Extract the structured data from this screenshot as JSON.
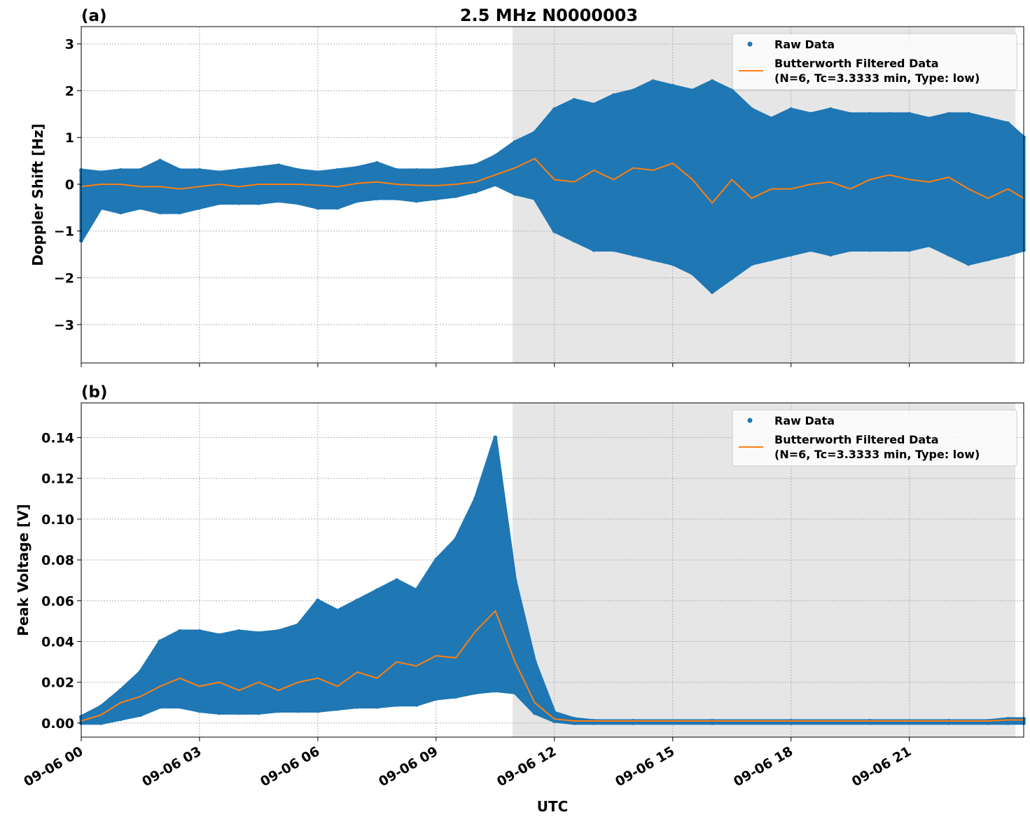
{
  "title": "2.5 MHz N0000003",
  "colors": {
    "raw": "#1f77b4",
    "filtered": "#ff7f0e",
    "shade": "#e6e6e6",
    "grid": "#b0b0b0"
  },
  "legend": {
    "raw": "Raw Data",
    "filtered_line1": "Butterworth Filtered Data",
    "filtered_line2": "(N=6, Tc=3.3333 min, Type: low)",
    "placement": "top-right"
  },
  "xlabel": "UTC",
  "x_ticks": [
    {
      "h": 0,
      "label": "09-06 00"
    },
    {
      "h": 3,
      "label": "09-06 03"
    },
    {
      "h": 6,
      "label": "09-06 06"
    },
    {
      "h": 9,
      "label": "09-06 09"
    },
    {
      "h": 12,
      "label": "09-06 12"
    },
    {
      "h": 15,
      "label": "09-06 15"
    },
    {
      "h": 18,
      "label": "09-06 18"
    },
    {
      "h": 21,
      "label": "09-06 21"
    }
  ],
  "chart_data": [
    {
      "type": "scatter+line",
      "panel_label": "(a)",
      "ylabel": "Doppler Shift [Hz]",
      "xlim_hours": [
        0,
        23.9
      ],
      "ylim": [
        -3.82,
        3.37
      ],
      "grid": true,
      "shaded_interval_hours": [
        10.94,
        23.69
      ],
      "y_ticks": [
        {
          "v": 3,
          "label": "3"
        },
        {
          "v": 2,
          "label": "2"
        },
        {
          "v": 1,
          "label": "1"
        },
        {
          "v": 0,
          "label": "0"
        },
        {
          "v": -1,
          "label": "−1"
        },
        {
          "v": -2,
          "label": "−2"
        },
        {
          "v": -3,
          "label": "−3"
        }
      ],
      "x_hours": [
        0,
        0.5,
        1,
        1.5,
        2,
        2.5,
        3,
        3.5,
        4,
        4.5,
        5,
        5.5,
        6,
        6.5,
        7,
        7.5,
        8,
        8.5,
        9,
        9.5,
        10,
        10.5,
        11,
        11.5,
        12,
        12.5,
        13,
        13.5,
        14,
        14.5,
        15,
        15.5,
        16,
        16.5,
        17,
        17.5,
        18,
        18.5,
        19,
        19.5,
        20,
        20.5,
        21,
        21.5,
        22,
        22.5,
        23,
        23.5,
        23.9
      ],
      "filtered": [
        -0.05,
        0,
        0,
        -0.05,
        -0.05,
        -0.1,
        -0.05,
        0,
        -0.05,
        0,
        0,
        0,
        -0.02,
        -0.05,
        0.02,
        0.05,
        0,
        -0.02,
        -0.03,
        0,
        0.05,
        0.2,
        0.35,
        0.55,
        0.1,
        0.05,
        0.3,
        0.1,
        0.35,
        0.3,
        0.45,
        0.1,
        -0.4,
        0.1,
        -0.3,
        -0.1,
        -0.1,
        0,
        0.05,
        -0.1,
        0.1,
        0.2,
        0.1,
        0.05,
        0.15,
        -0.1,
        -0.3,
        -0.1,
        -0.3
      ],
      "raw_high": [
        0.3,
        0.25,
        0.3,
        0.3,
        0.5,
        0.3,
        0.3,
        0.25,
        0.3,
        0.35,
        0.4,
        0.3,
        0.25,
        0.3,
        0.35,
        0.45,
        0.3,
        0.3,
        0.3,
        0.35,
        0.4,
        0.6,
        0.9,
        1.1,
        1.6,
        1.8,
        1.7,
        1.9,
        2.0,
        2.2,
        2.1,
        2.0,
        2.2,
        2.0,
        1.6,
        1.4,
        1.6,
        1.5,
        1.6,
        1.5,
        1.5,
        1.5,
        1.5,
        1.4,
        1.5,
        1.5,
        1.4,
        1.3,
        1.0
      ],
      "raw_low": [
        -1.2,
        -0.5,
        -0.6,
        -0.5,
        -0.6,
        -0.6,
        -0.5,
        -0.4,
        -0.4,
        -0.4,
        -0.35,
        -0.4,
        -0.5,
        -0.5,
        -0.35,
        -0.3,
        -0.3,
        -0.35,
        -0.3,
        -0.25,
        -0.15,
        0.0,
        -0.2,
        -0.3,
        -1.0,
        -1.2,
        -1.4,
        -1.4,
        -1.5,
        -1.6,
        -1.7,
        -1.9,
        -2.3,
        -2.0,
        -1.7,
        -1.6,
        -1.5,
        -1.4,
        -1.5,
        -1.4,
        -1.4,
        -1.4,
        -1.4,
        -1.3,
        -1.5,
        -1.7,
        -1.6,
        -1.5,
        -1.4
      ]
    },
    {
      "type": "scatter+line",
      "panel_label": "(b)",
      "ylabel": "Peak Voltage [V]",
      "xlim_hours": [
        0,
        23.9
      ],
      "ylim": [
        -0.0069,
        0.157
      ],
      "grid": true,
      "shaded_interval_hours": [
        10.94,
        23.69
      ],
      "y_ticks": [
        {
          "v": 0.14,
          "label": "0.14"
        },
        {
          "v": 0.12,
          "label": "0.12"
        },
        {
          "v": 0.1,
          "label": "0.10"
        },
        {
          "v": 0.08,
          "label": "0.08"
        },
        {
          "v": 0.06,
          "label": "0.06"
        },
        {
          "v": 0.04,
          "label": "0.04"
        },
        {
          "v": 0.02,
          "label": "0.02"
        },
        {
          "v": 0,
          "label": "0.00"
        }
      ],
      "x_hours": [
        0,
        0.5,
        1,
        1.5,
        2,
        2.5,
        3,
        3.5,
        4,
        4.5,
        5,
        5.5,
        6,
        6.5,
        7,
        7.5,
        8,
        8.5,
        9,
        9.5,
        10,
        10.5,
        11,
        11.5,
        12,
        12.5,
        13,
        14,
        16,
        18,
        20,
        22,
        23,
        23.5,
        23.9
      ],
      "filtered": [
        0.001,
        0.004,
        0.01,
        0.013,
        0.018,
        0.022,
        0.018,
        0.02,
        0.016,
        0.02,
        0.016,
        0.02,
        0.022,
        0.018,
        0.025,
        0.022,
        0.03,
        0.028,
        0.033,
        0.032,
        0.045,
        0.055,
        0.03,
        0.01,
        0.002,
        0.001,
        0.001,
        0.001,
        0.001,
        0.001,
        0.001,
        0.001,
        0.001,
        0.0015,
        0.0015
      ],
      "raw_high": [
        0.003,
        0.008,
        0.016,
        0.025,
        0.04,
        0.045,
        0.045,
        0.043,
        0.045,
        0.044,
        0.045,
        0.048,
        0.06,
        0.055,
        0.06,
        0.065,
        0.07,
        0.065,
        0.08,
        0.09,
        0.11,
        0.14,
        0.07,
        0.03,
        0.005,
        0.002,
        0.001,
        0.001,
        0.001,
        0.001,
        0.001,
        0.001,
        0.001,
        0.002,
        0.002
      ],
      "raw_low": [
        0,
        0,
        0.002,
        0.004,
        0.008,
        0.008,
        0.006,
        0.005,
        0.005,
        0.005,
        0.006,
        0.006,
        0.006,
        0.007,
        0.008,
        0.008,
        0.009,
        0.009,
        0.012,
        0.013,
        0.015,
        0.016,
        0.015,
        0.005,
        0.001,
        0,
        0,
        0,
        0,
        0,
        0,
        0,
        0,
        0,
        0
      ]
    }
  ]
}
